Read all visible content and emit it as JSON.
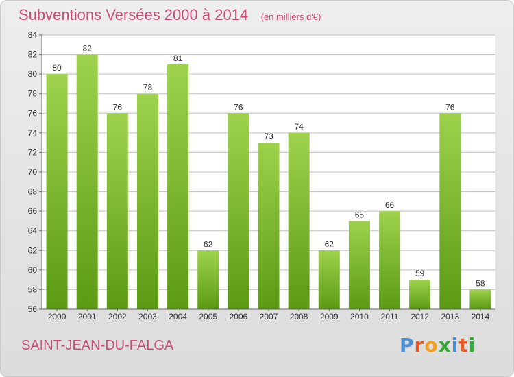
{
  "header": {
    "title": "Subventions Versées 2000 à 2014",
    "subtitle": "(en milliers d'€)"
  },
  "footer": {
    "location": "SAINT-JEAN-DU-FALGA",
    "logo": "Proxiti"
  },
  "colors": {
    "title": "#cc4c78",
    "bar_light": "#9ed24c",
    "bar_dark": "#5c9a14",
    "grid": "#c0c0c0"
  },
  "chart_data": {
    "type": "bar",
    "title": "Subventions Versées 2000 à 2014",
    "subtitle": "(en milliers d'€)",
    "categories": [
      "2000",
      "2001",
      "2002",
      "2003",
      "2004",
      "2005",
      "2006",
      "2007",
      "2008",
      "2009",
      "2010",
      "2011",
      "2012",
      "2013",
      "2014"
    ],
    "values": [
      80,
      82,
      76,
      78,
      81,
      62,
      76,
      73,
      74,
      62,
      65,
      66,
      59,
      76,
      58
    ],
    "ylim": [
      56,
      84
    ],
    "yticks": [
      56,
      58,
      60,
      62,
      64,
      66,
      68,
      70,
      72,
      74,
      76,
      78,
      80,
      82,
      84
    ],
    "grid": true,
    "data_labels": true
  }
}
